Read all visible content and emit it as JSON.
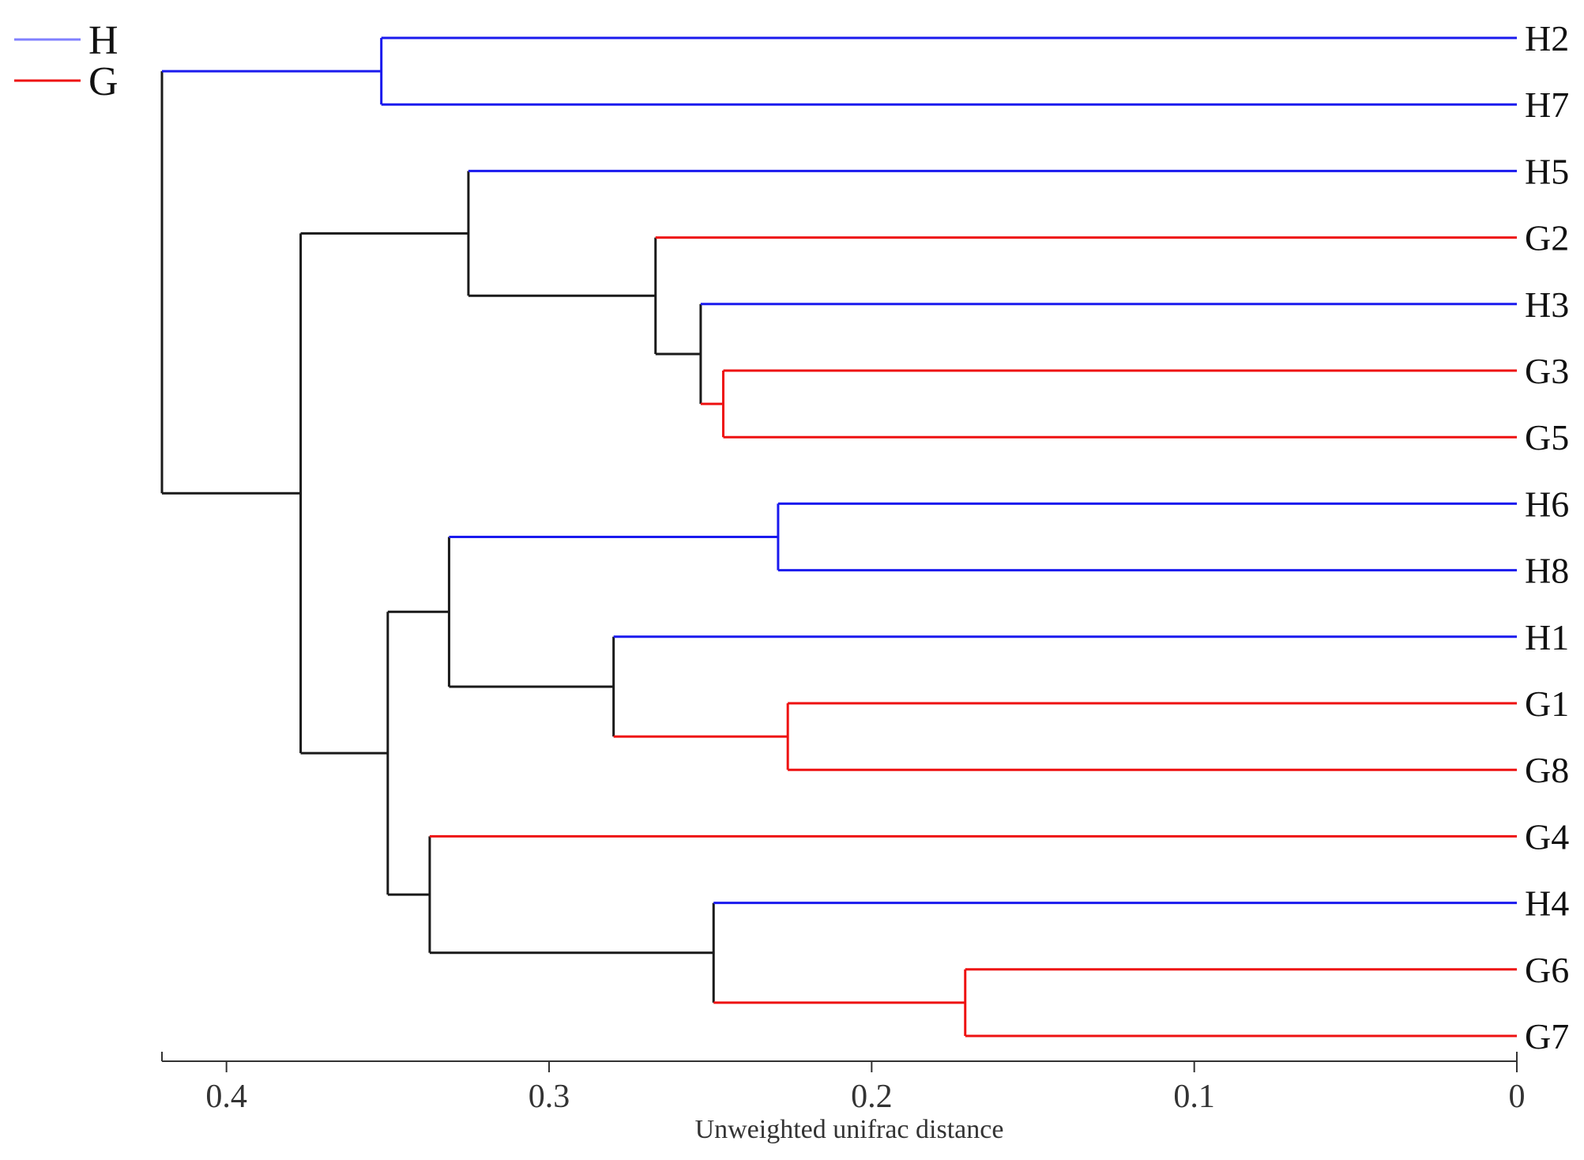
{
  "chart_data": {
    "type": "dendrogram",
    "title": "",
    "xlabel": "Unweighted unifrac distance",
    "ylabel": "",
    "xlim": [
      0.42,
      0
    ],
    "x_ticks": [
      {
        "value": 0.4,
        "label": "0.4"
      },
      {
        "value": 0.3,
        "label": "0.3"
      },
      {
        "value": 0.2,
        "label": "0.2"
      },
      {
        "value": 0.1,
        "label": "0.1"
      },
      {
        "value": 0,
        "label": "0"
      }
    ],
    "colors": {
      "H": "#1a1aee",
      "G": "#ee1111",
      "mixed": "#1a1a1a"
    },
    "legend": {
      "position": "top-left",
      "entries": [
        {
          "group": "H",
          "label": "H",
          "color": "#8080ff"
        },
        {
          "group": "G",
          "label": "G",
          "color": "#ee1111"
        }
      ]
    },
    "leaves": [
      {
        "id": "H2",
        "label": "H2",
        "group": "H"
      },
      {
        "id": "H7",
        "label": "H7",
        "group": "H"
      },
      {
        "id": "H5",
        "label": "H5",
        "group": "H"
      },
      {
        "id": "G2",
        "label": "G2",
        "group": "G"
      },
      {
        "id": "H3",
        "label": "H3",
        "group": "H"
      },
      {
        "id": "G3",
        "label": "G3",
        "group": "G"
      },
      {
        "id": "G5",
        "label": "G5",
        "group": "G"
      },
      {
        "id": "H6",
        "label": "H6",
        "group": "H"
      },
      {
        "id": "H8",
        "label": "H8",
        "group": "H"
      },
      {
        "id": "H1",
        "label": "H1",
        "group": "H"
      },
      {
        "id": "G1",
        "label": "G1",
        "group": "G"
      },
      {
        "id": "G8",
        "label": "G8",
        "group": "G"
      },
      {
        "id": "G4",
        "label": "G4",
        "group": "G"
      },
      {
        "id": "H4",
        "label": "H4",
        "group": "H"
      },
      {
        "id": "G6",
        "label": "G6",
        "group": "G"
      },
      {
        "id": "G7",
        "label": "G7",
        "group": "G"
      }
    ],
    "merges": [
      {
        "id": "n_H2_H7",
        "children": [
          "H2",
          "H7"
        ],
        "height": 0.352
      },
      {
        "id": "n_G3_G5",
        "children": [
          "G3",
          "G5"
        ],
        "height": 0.246
      },
      {
        "id": "n_H3_G3G5",
        "children": [
          "H3",
          "n_G3_G5"
        ],
        "height": 0.253
      },
      {
        "id": "n_G2_H3G",
        "children": [
          "G2",
          "n_H3_G3G5"
        ],
        "height": 0.267
      },
      {
        "id": "n_H5_G2H3G",
        "children": [
          "H5",
          "n_G2_H3G"
        ],
        "height": 0.325
      },
      {
        "id": "n_H6_H8",
        "children": [
          "H6",
          "H8"
        ],
        "height": 0.229
      },
      {
        "id": "n_G1_G8",
        "children": [
          "G1",
          "G8"
        ],
        "height": 0.226
      },
      {
        "id": "n_H1_G1G8",
        "children": [
          "H1",
          "n_G1_G8"
        ],
        "height": 0.28
      },
      {
        "id": "n_H6H8_H1G",
        "children": [
          "n_H6_H8",
          "n_H1_G1G8"
        ],
        "height": 0.331
      },
      {
        "id": "n_G6_G7",
        "children": [
          "G6",
          "G7"
        ],
        "height": 0.171
      },
      {
        "id": "n_H4_G6G7",
        "children": [
          "H4",
          "n_G6_G7"
        ],
        "height": 0.249
      },
      {
        "id": "n_G4_H4G",
        "children": [
          "G4",
          "n_H4_G6G7"
        ],
        "height": 0.337
      },
      {
        "id": "n_lower_mid",
        "children": [
          "n_H6H8_H1G",
          "n_G4_H4G"
        ],
        "height": 0.35
      },
      {
        "id": "n_B",
        "children": [
          "n_H5_G2H3G",
          "n_lower_mid"
        ],
        "height": 0.377
      },
      {
        "id": "n_root",
        "children": [
          "n_H2_H7",
          "n_B"
        ],
        "height": 0.42
      }
    ]
  }
}
